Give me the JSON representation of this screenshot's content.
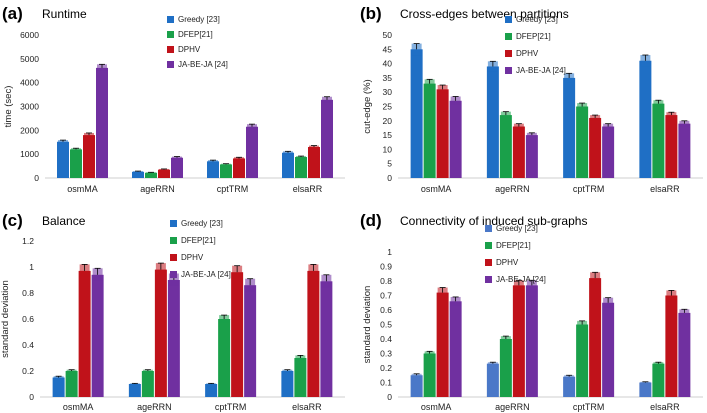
{
  "chart_data": [
    {
      "type": "bar",
      "panel": "(a)",
      "title": "Runtime",
      "ylabel": "time (sec)",
      "xlabel": "",
      "ylim": [
        0,
        6000
      ],
      "yticks": [
        0,
        1000,
        2000,
        3000,
        4000,
        5000,
        6000
      ],
      "grid": false,
      "legend_position": "top-right",
      "categories": [
        "osmMA",
        "ageRRN",
        "cptTRM",
        "elsaRR"
      ],
      "series": [
        {
          "name": "Greedy [23]",
          "color": "#1f6fc5",
          "values": [
            1520,
            260,
            700,
            1060
          ],
          "errors": [
            70,
            30,
            50,
            60
          ]
        },
        {
          "name": "DFEP[21]",
          "color": "#1aa04a",
          "values": [
            1200,
            220,
            570,
            880
          ],
          "errors": [
            50,
            20,
            30,
            40
          ]
        },
        {
          "name": "DPHV",
          "color": "#c0121a",
          "values": [
            1800,
            350,
            820,
            1300
          ],
          "errors": [
            90,
            30,
            50,
            60
          ]
        },
        {
          "name": "JA-BE-JA [24]",
          "color": "#7030a0",
          "values": [
            4620,
            850,
            2150,
            3280
          ],
          "errors": [
            150,
            50,
            110,
            130
          ]
        }
      ]
    },
    {
      "type": "bar",
      "panel": "(b)",
      "title": "Cross-edges between partitions",
      "ylabel": "cut-edge (%)",
      "xlabel": "",
      "ylim": [
        0,
        50
      ],
      "yticks": [
        0,
        5,
        10,
        15,
        20,
        25,
        30,
        35,
        40,
        45,
        50
      ],
      "grid": false,
      "legend_position": "top-right",
      "categories": [
        "osmMA",
        "ageRRN",
        "cptTRM",
        "elsaRR"
      ],
      "series": [
        {
          "name": "Greedy [23]",
          "color": "#1f6fc5",
          "values": [
            45,
            39,
            35,
            41
          ],
          "errors": [
            2,
            1.8,
            1.6,
            2
          ]
        },
        {
          "name": "DFEP[21]",
          "color": "#1aa04a",
          "values": [
            33,
            22,
            25,
            26
          ],
          "errors": [
            1.5,
            1.2,
            1.2,
            1.2
          ]
        },
        {
          "name": "DPHV",
          "color": "#c0121a",
          "values": [
            31,
            18,
            21,
            22
          ],
          "errors": [
            1.5,
            1,
            1,
            1
          ]
        },
        {
          "name": "JA-BE-JA [24]",
          "color": "#7030a0",
          "values": [
            27,
            15,
            18,
            19
          ],
          "errors": [
            1.5,
            0.8,
            1,
            1
          ]
        }
      ]
    },
    {
      "type": "bar",
      "panel": "(c)",
      "title": "Balance",
      "ylabel": "standard deviation",
      "xlabel": "",
      "ylim": [
        0,
        1.2
      ],
      "yticks": [
        0,
        0.2,
        0.4,
        0.6,
        0.8,
        1,
        1.2
      ],
      "grid": false,
      "legend_position": "top-right",
      "categories": [
        "osmMA",
        "ageRRN",
        "cptTRM",
        "elsaRR"
      ],
      "series": [
        {
          "name": "Greedy [23]",
          "color": "#1f6fc5",
          "values": [
            0.15,
            0.1,
            0.1,
            0.2
          ],
          "errors": [
            0.01,
            0.005,
            0.005,
            0.01
          ]
        },
        {
          "name": "DFEP[21]",
          "color": "#1aa04a",
          "values": [
            0.2,
            0.2,
            0.6,
            0.3
          ],
          "errors": [
            0.01,
            0.01,
            0.03,
            0.02
          ]
        },
        {
          "name": "DPHV",
          "color": "#c0121a",
          "values": [
            0.97,
            0.98,
            0.96,
            0.97
          ],
          "errors": [
            0.05,
            0.05,
            0.05,
            0.05
          ]
        },
        {
          "name": "JA-BE-JA [24]",
          "color": "#7030a0",
          "values": [
            0.94,
            0.9,
            0.86,
            0.89
          ],
          "errors": [
            0.05,
            0.05,
            0.05,
            0.05
          ]
        }
      ]
    },
    {
      "type": "bar",
      "panel": "(d)",
      "title": "Connectivity of induced sub-graphs",
      "ylabel": "standard deviation",
      "xlabel": "",
      "ylim": [
        0,
        1
      ],
      "yticks": [
        0,
        0.1,
        0.2,
        0.3,
        0.4,
        0.5,
        0.6,
        0.7,
        0.8,
        0.9,
        1
      ],
      "grid": false,
      "legend_position": "top-right",
      "categories": [
        "osmMA",
        "ageRRN",
        "cptTRM",
        "elsaRR"
      ],
      "series": [
        {
          "name": "Greedy [23]",
          "color": "#4a78c8",
          "values": [
            0.15,
            0.23,
            0.14,
            0.1
          ],
          "errors": [
            0.01,
            0.01,
            0.01,
            0.005
          ]
        },
        {
          "name": "DFEP[21]",
          "color": "#1aa04a",
          "values": [
            0.3,
            0.4,
            0.5,
            0.23
          ],
          "errors": [
            0.015,
            0.02,
            0.025,
            0.01
          ]
        },
        {
          "name": "DPHV",
          "color": "#c0121a",
          "values": [
            0.72,
            0.77,
            0.82,
            0.7
          ],
          "errors": [
            0.035,
            0.035,
            0.04,
            0.035
          ]
        },
        {
          "name": "JA-BE-JA [24]",
          "color": "#7030a0",
          "values": [
            0.66,
            0.77,
            0.65,
            0.58
          ],
          "errors": [
            0.03,
            0.035,
            0.035,
            0.025
          ]
        }
      ]
    }
  ]
}
